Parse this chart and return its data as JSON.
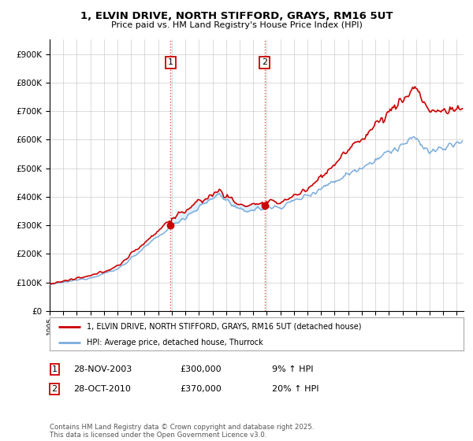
{
  "title": "1, ELVIN DRIVE, NORTH STIFFORD, GRAYS, RM16 5UT",
  "subtitle": "Price paid vs. HM Land Registry's House Price Index (HPI)",
  "red_label": "1, ELVIN DRIVE, NORTH STIFFORD, GRAYS, RM16 5UT (detached house)",
  "blue_label": "HPI: Average price, detached house, Thurrock",
  "sale1_date": "28-NOV-2003",
  "sale1_price": 300000,
  "sale1_pct": "9% ↑ HPI",
  "sale2_date": "28-OCT-2010",
  "sale2_price": 370000,
  "sale2_pct": "20% ↑ HPI",
  "footnote": "Contains HM Land Registry data © Crown copyright and database right 2025.\nThis data is licensed under the Open Government Licence v3.0.",
  "red_color": "#cc0000",
  "blue_color": "#7aacdc",
  "shade_color": "#ddeeff",
  "plot_bg": "#ffffff",
  "grid_color": "#cccccc",
  "ylim": [
    0,
    950000
  ],
  "xlim_start": 1995.25,
  "xlim_end": 2025.5
}
